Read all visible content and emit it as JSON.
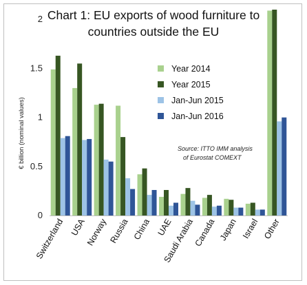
{
  "chart_data": {
    "type": "bar",
    "title_lines": [
      "Chart 1: EU exports of wood furniture to",
      "countries outside the EU"
    ],
    "ylabel": "€ billion (nominal values)",
    "xlabel": "",
    "ylim": [
      0,
      2.1
    ],
    "yticks": [
      {
        "value": 0,
        "label": "0"
      },
      {
        "value": 0.5,
        "label": "0.5"
      },
      {
        "value": 1,
        "label": "1"
      },
      {
        "value": 1.5,
        "label": "1.5"
      },
      {
        "value": 2,
        "label": "2"
      }
    ],
    "grid": false,
    "legend_position": "right",
    "source_lines": [
      "Source: ITTO IMM analysis",
      "of Eurostat COMEXT"
    ],
    "categories": [
      "Switzerland",
      "USA",
      "Norway",
      "Russia",
      "China",
      "UAE",
      "Saudi Arabia",
      "Canada",
      "Japan",
      "Israel",
      "Other"
    ],
    "series": [
      {
        "name": "Year 2014",
        "color": "#a9d18e",
        "values": [
          1.49,
          1.3,
          1.13,
          1.12,
          0.42,
          0.19,
          0.22,
          0.18,
          0.17,
          0.12,
          2.09
        ]
      },
      {
        "name": "Year 2015",
        "color": "#375623",
        "values": [
          1.63,
          1.55,
          1.14,
          0.8,
          0.48,
          0.26,
          0.28,
          0.21,
          0.16,
          0.13,
          2.1
        ]
      },
      {
        "name": "Jan-Jun 2015",
        "color": "#9dc3e6",
        "values": [
          0.79,
          0.77,
          0.57,
          0.38,
          0.21,
          0.1,
          0.15,
          0.09,
          0.08,
          0.06,
          0.96
        ]
      },
      {
        "name": "Jan-Jun 2016",
        "color": "#2f5597",
        "values": [
          0.81,
          0.78,
          0.55,
          0.27,
          0.26,
          0.13,
          0.11,
          0.1,
          0.08,
          0.06,
          1.0
        ]
      }
    ]
  }
}
